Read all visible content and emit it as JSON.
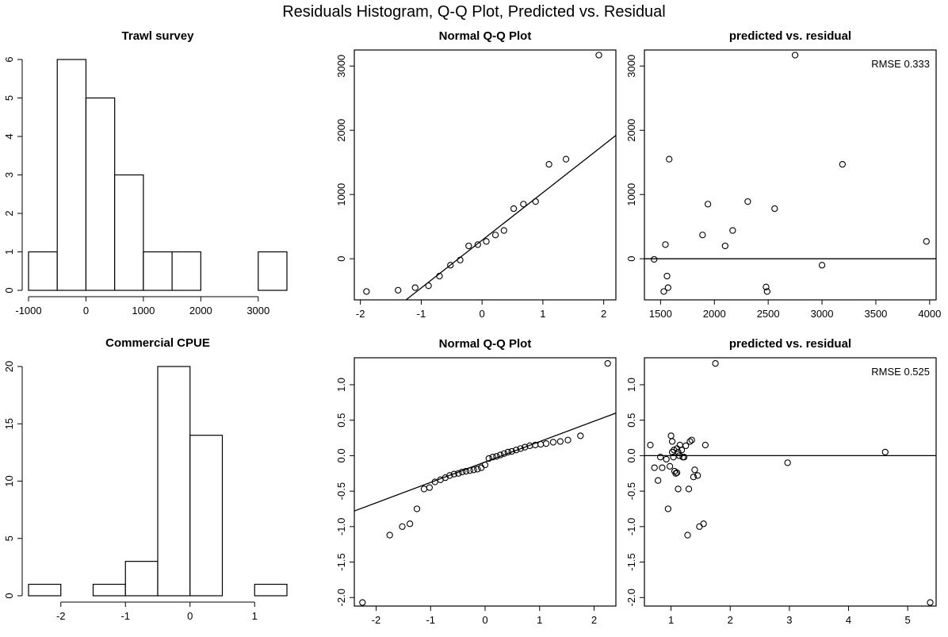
{
  "page": {
    "title": "Residuals Histogram, Q-Q Plot, Predicted vs. Residual"
  },
  "chart_data": [
    {
      "id": "hist1",
      "type": "bar",
      "title": "Trawl survey",
      "bins": [
        [
          -1000,
          -500
        ],
        [
          -500,
          0
        ],
        [
          0,
          500
        ],
        [
          500,
          1000
        ],
        [
          1000,
          1500
        ],
        [
          1500,
          2000
        ],
        [
          2000,
          2500
        ],
        [
          2500,
          3000
        ],
        [
          3000,
          3500
        ]
      ],
      "values": [
        1,
        6,
        5,
        3,
        1,
        1,
        0,
        0,
        1
      ],
      "xlim": [
        -1000,
        3500
      ],
      "ylim": [
        0,
        6
      ],
      "x_ticks": [
        -1000,
        0,
        1000,
        2000,
        3000
      ],
      "y_ticks": [
        0,
        1,
        2,
        3,
        4,
        5,
        6
      ]
    },
    {
      "id": "qq1",
      "type": "scatter",
      "title": "Normal Q-Q Plot",
      "points": [
        [
          -1.9,
          -510
        ],
        [
          -1.38,
          -490
        ],
        [
          -1.1,
          -450
        ],
        [
          -0.88,
          -420
        ],
        [
          -0.7,
          -270
        ],
        [
          -0.52,
          -100
        ],
        [
          -0.36,
          -20
        ],
        [
          -0.22,
          200
        ],
        [
          -0.07,
          220
        ],
        [
          0.07,
          270
        ],
        [
          0.22,
          370
        ],
        [
          0.36,
          440
        ],
        [
          0.52,
          780
        ],
        [
          0.68,
          850
        ],
        [
          0.88,
          890
        ],
        [
          1.1,
          1470
        ],
        [
          1.38,
          1550
        ],
        [
          1.92,
          3170
        ]
      ],
      "line": [
        [
          -1.25,
          -640
        ],
        [
          2.2,
          1920
        ]
      ],
      "xlim": [
        -2.1,
        2.2
      ],
      "ylim": [
        -640,
        3250
      ],
      "x_ticks": [
        -2,
        -1,
        0,
        1,
        2
      ],
      "y_ticks": [
        0,
        1000,
        2000,
        3000
      ]
    },
    {
      "id": "pr1",
      "type": "scatter",
      "title": "predicted vs. residual",
      "annotation": "RMSE 0.333",
      "points": [
        [
          1440,
          -10
        ],
        [
          1530,
          -510
        ],
        [
          1545,
          220
        ],
        [
          1560,
          -270
        ],
        [
          1570,
          -450
        ],
        [
          1580,
          1550
        ],
        [
          1890,
          370
        ],
        [
          1940,
          850
        ],
        [
          2100,
          200
        ],
        [
          2170,
          440
        ],
        [
          2310,
          890
        ],
        [
          2480,
          -440
        ],
        [
          2490,
          -510
        ],
        [
          2560,
          780
        ],
        [
          2750,
          3170
        ],
        [
          3000,
          -100
        ],
        [
          3190,
          1470
        ],
        [
          3970,
          270
        ]
      ],
      "hline": 0,
      "xlim": [
        1350,
        4060
      ],
      "ylim": [
        -640,
        3250
      ],
      "x_ticks": [
        1500,
        2000,
        2500,
        3000,
        3500,
        4000
      ],
      "y_ticks": [
        0,
        1000,
        2000,
        3000
      ]
    },
    {
      "id": "hist2",
      "type": "bar",
      "title": "Commercial CPUE",
      "bins": [
        [
          -2.5,
          -2
        ],
        [
          -2,
          -1.5
        ],
        [
          -1.5,
          -1
        ],
        [
          -1,
          -0.5
        ],
        [
          -0.5,
          0
        ],
        [
          0,
          0.5
        ],
        [
          0.5,
          1
        ],
        [
          1,
          1.5
        ]
      ],
      "values": [
        1,
        0,
        1,
        3,
        20,
        14,
        0,
        1
      ],
      "xlim": [
        -2.5,
        1.5
      ],
      "ylim": [
        0,
        20
      ],
      "x_ticks": [
        -2,
        -1,
        0,
        1
      ],
      "y_ticks": [
        0,
        5,
        10,
        15,
        20
      ]
    },
    {
      "id": "qq2",
      "type": "scatter",
      "title": "Normal Q-Q Plot",
      "points": [
        [
          -2.25,
          -2.07
        ],
        [
          -1.75,
          -1.12
        ],
        [
          -1.52,
          -1.0
        ],
        [
          -1.38,
          -0.96
        ],
        [
          -1.25,
          -0.75
        ],
        [
          -1.12,
          -0.47
        ],
        [
          -1.02,
          -0.45
        ],
        [
          -0.92,
          -0.37
        ],
        [
          -0.82,
          -0.34
        ],
        [
          -0.73,
          -0.31
        ],
        [
          -0.65,
          -0.28
        ],
        [
          -0.57,
          -0.26
        ],
        [
          -0.49,
          -0.25
        ],
        [
          -0.42,
          -0.23
        ],
        [
          -0.35,
          -0.22
        ],
        [
          -0.28,
          -0.21
        ],
        [
          -0.21,
          -0.2
        ],
        [
          -0.14,
          -0.19
        ],
        [
          -0.07,
          -0.17
        ],
        [
          0.0,
          -0.13
        ],
        [
          0.07,
          -0.04
        ],
        [
          0.14,
          -0.02
        ],
        [
          0.21,
          -0.01
        ],
        [
          0.28,
          0.01
        ],
        [
          0.35,
          0.03
        ],
        [
          0.42,
          0.05
        ],
        [
          0.49,
          0.06
        ],
        [
          0.57,
          0.08
        ],
        [
          0.65,
          0.1
        ],
        [
          0.73,
          0.12
        ],
        [
          0.82,
          0.14
        ],
        [
          0.92,
          0.15
        ],
        [
          1.02,
          0.16
        ],
        [
          1.12,
          0.17
        ],
        [
          1.25,
          0.19
        ],
        [
          1.38,
          0.2
        ],
        [
          1.52,
          0.22
        ],
        [
          1.75,
          0.28
        ],
        [
          2.25,
          1.3
        ]
      ],
      "line": [
        [
          -2.4,
          -0.78
        ],
        [
          2.4,
          0.6
        ]
      ],
      "xlim": [
        -2.4,
        2.4
      ],
      "ylim": [
        -2.12,
        1.38
      ],
      "x_ticks": [
        -2,
        -1,
        0,
        1,
        2
      ],
      "y_ticks": [
        -2.0,
        -1.5,
        -1.0,
        -0.5,
        0.0,
        0.5,
        1.0
      ]
    },
    {
      "id": "pr2",
      "type": "scatter",
      "title": "predicted vs. residual",
      "annotation": "RMSE 0.525",
      "points": [
        [
          0.65,
          0.15
        ],
        [
          0.72,
          -0.17
        ],
        [
          0.78,
          -0.35
        ],
        [
          0.82,
          -0.02
        ],
        [
          0.85,
          -0.17
        ],
        [
          0.92,
          -0.05
        ],
        [
          0.95,
          -0.75
        ],
        [
          0.98,
          -0.15
        ],
        [
          1.0,
          0.28
        ],
        [
          1.02,
          0.2
        ],
        [
          1.02,
          0.05
        ],
        [
          1.04,
          -0.02
        ],
        [
          1.05,
          0.08
        ],
        [
          1.06,
          -0.22
        ],
        [
          1.08,
          -0.25
        ],
        [
          1.1,
          0.1
        ],
        [
          1.1,
          -0.24
        ],
        [
          1.12,
          0.05
        ],
        [
          1.12,
          -0.47
        ],
        [
          1.14,
          0.0
        ],
        [
          1.15,
          0.15
        ],
        [
          1.18,
          0.08
        ],
        [
          1.2,
          -0.02
        ],
        [
          1.22,
          -0.02
        ],
        [
          1.25,
          0.14
        ],
        [
          1.28,
          -1.12
        ],
        [
          1.3,
          -0.47
        ],
        [
          1.32,
          0.2
        ],
        [
          1.35,
          0.22
        ],
        [
          1.38,
          -0.3
        ],
        [
          1.4,
          -0.2
        ],
        [
          1.45,
          -0.28
        ],
        [
          1.48,
          -1.0
        ],
        [
          1.55,
          -0.96
        ],
        [
          1.58,
          0.15
        ],
        [
          1.75,
          1.3
        ],
        [
          2.97,
          -0.1
        ],
        [
          4.62,
          0.05
        ],
        [
          5.38,
          -2.07
        ]
      ],
      "hline": 0,
      "xlim": [
        0.55,
        5.48
      ],
      "ylim": [
        -2.12,
        1.38
      ],
      "x_ticks": [
        1,
        2,
        3,
        4,
        5
      ],
      "y_ticks": [
        -2.0,
        -1.5,
        -1.0,
        -0.5,
        0.0,
        0.5,
        1.0
      ]
    }
  ]
}
